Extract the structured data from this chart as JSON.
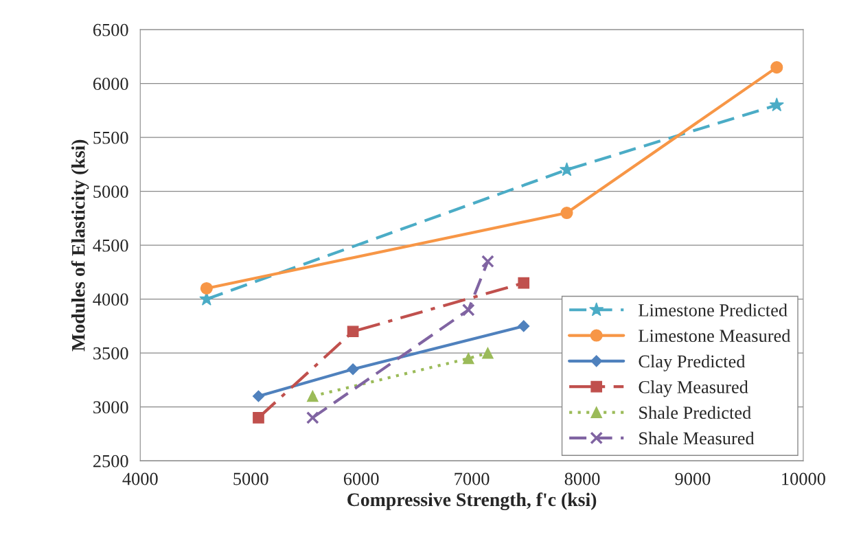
{
  "chart_data": {
    "type": "line",
    "xlabel": "Compressive Strength, f'c (ksi)",
    "ylabel": "Modules of Elasticity (ksi)",
    "xlim": [
      4000,
      10000
    ],
    "xticks": [
      4000,
      5000,
      6000,
      7000,
      8000,
      9000,
      10000
    ],
    "ylim": [
      2500,
      6500
    ],
    "yticks": [
      2500,
      3000,
      3500,
      4000,
      4500,
      5000,
      5500,
      6000,
      6500
    ],
    "grid": "y",
    "legend": "bottom right",
    "series": [
      {
        "name": "Limestone Predicted",
        "color": "#4bacc6",
        "marker": "star",
        "line_style": "dashed",
        "x": [
          4600,
          7860,
          9760
        ],
        "values": [
          4000,
          5200,
          5800
        ]
      },
      {
        "name": "Limestone Measured",
        "color": "#f79646",
        "marker": "circle",
        "line_style": "solid",
        "x": [
          4600,
          7860,
          9760
        ],
        "values": [
          4100,
          4800,
          6150
        ]
      },
      {
        "name": "Clay Predicted",
        "color": "#4f81bd",
        "marker": "diamond",
        "line_style": "solid",
        "x": [
          5070,
          5925,
          7470
        ],
        "values": [
          3100,
          3350,
          3750
        ]
      },
      {
        "name": "Clay Measured",
        "color": "#c0504d",
        "marker": "square",
        "line_style": "dashdot",
        "x": [
          5070,
          5925,
          7470
        ],
        "values": [
          2900,
          3700,
          4150
        ]
      },
      {
        "name": "Shale Predicted",
        "color": "#9bbb59",
        "marker": "triangle",
        "line_style": "dotted",
        "x": [
          5560,
          6970,
          7145
        ],
        "values": [
          3100,
          3450,
          3500
        ]
      },
      {
        "name": "Shale Measured",
        "color": "#8064a2",
        "marker": "cross",
        "line_style": "dashed",
        "x": [
          5560,
          6970,
          7145
        ],
        "values": [
          2900,
          3900,
          4350
        ]
      }
    ]
  }
}
